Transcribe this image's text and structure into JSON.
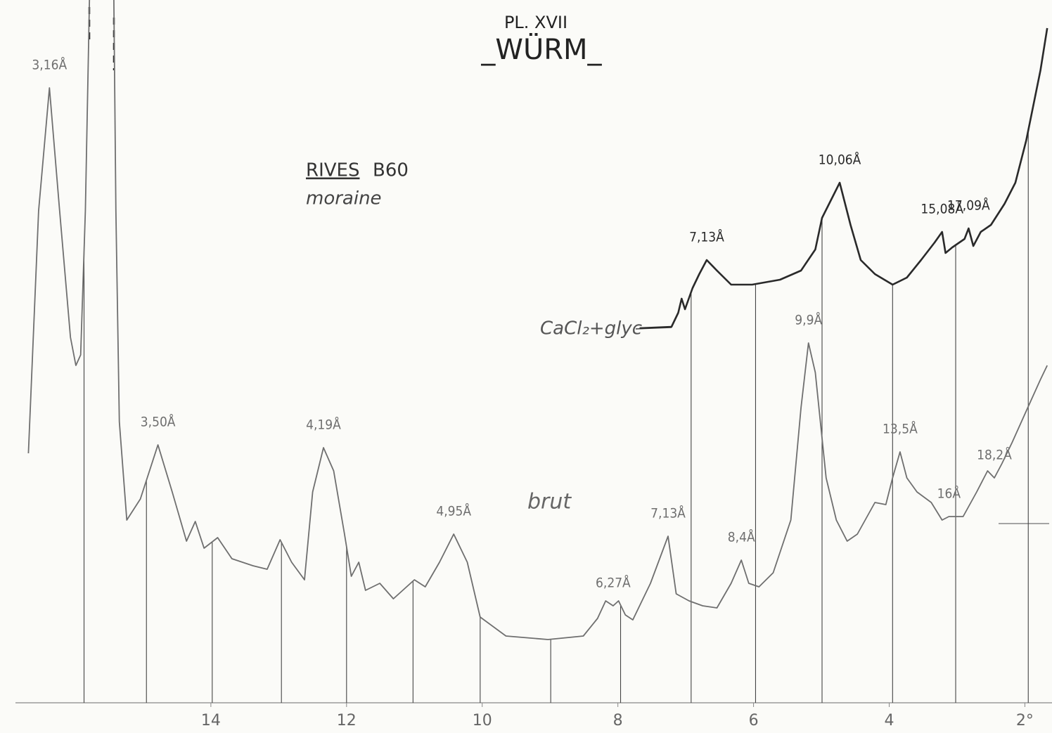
{
  "chart_data": {
    "type": "line",
    "title": "PL. XVII",
    "subtitle": "_WÜRM_",
    "sample_name": "RIVES",
    "sample_id": "B60",
    "material": "moraine",
    "xlim": [
      17,
      1.6
    ],
    "ylim": [
      0,
      100
    ],
    "xticks": [
      14,
      12,
      10,
      8,
      6,
      4,
      {
        "value": 2,
        "label": "2°"
      }
    ],
    "drop_lines": [
      15.87,
      14.95,
      13.98,
      12.96,
      12.0,
      11.02,
      10.03,
      8.99,
      7.96,
      6.92,
      5.97,
      4.99,
      3.95,
      3.02,
      1.95
    ],
    "series": [
      {
        "name": "brut",
        "color": "#6f6f6f",
        "x": [
          16.69,
          16.54,
          16.38,
          16.23,
          16.07,
          15.99,
          15.92,
          15.85,
          15.79,
          15.61,
          15.43,
          15.4,
          15.35,
          15.24,
          15.04,
          14.78,
          14.57,
          14.36,
          14.23,
          14.1,
          13.9,
          13.69,
          13.38,
          13.17,
          12.98,
          12.81,
          12.62,
          12.5,
          12.34,
          12.19,
          12.03,
          11.93,
          11.82,
          11.72,
          11.51,
          11.31,
          11.0,
          10.84,
          10.63,
          10.42,
          10.22,
          10.03,
          9.65,
          9.03,
          8.51,
          8.3,
          8.18,
          8.07,
          7.99,
          7.89,
          7.78,
          7.52,
          7.26,
          7.14,
          6.95,
          6.75,
          6.54,
          6.33,
          6.18,
          6.07,
          5.92,
          5.71,
          5.45,
          5.3,
          5.19,
          5.09,
          4.93,
          4.78,
          4.62,
          4.47,
          4.21,
          4.05,
          3.95,
          3.84,
          3.74,
          3.59,
          3.38,
          3.22,
          3.12,
          2.91,
          2.71,
          2.55,
          2.45,
          2.34,
          2.19,
          1.98,
          1.77,
          1.67
        ],
        "values": [
          35.5,
          70,
          87.5,
          70,
          52,
          48,
          49.5,
          70,
          100,
          null,
          100,
          70,
          40,
          26,
          29,
          36.7,
          30,
          23,
          25.8,
          22,
          23.5,
          20.5,
          19.5,
          19,
          23.2,
          20,
          17.5,
          30,
          36.3,
          33,
          24,
          18,
          20,
          16,
          17,
          14.8,
          17.5,
          16.5,
          20,
          24,
          20,
          12.2,
          9.5,
          9,
          9.5,
          12,
          14.5,
          13.8,
          14.5,
          12.5,
          11.8,
          17,
          23.7,
          15.5,
          14.5,
          13.8,
          13.5,
          17,
          20.3,
          17,
          16.5,
          18.5,
          26,
          42,
          51.2,
          47,
          32,
          26,
          23,
          24,
          28.5,
          28.2,
          32,
          35.7,
          32,
          30,
          28.5,
          26,
          26.5,
          26.5,
          30,
          33,
          32,
          34,
          37,
          41.5,
          46,
          48
        ],
        "peaks": [
          {
            "text": "3,16Å",
            "x": 16.38
          },
          {
            "text": "3,50Å",
            "x": 14.78
          },
          {
            "text": "4,19Å",
            "x": 12.34
          },
          {
            "text": "4,95Å",
            "x": 10.42
          },
          {
            "text": "6,27Å",
            "x": 8.07
          },
          {
            "text": "7,13Å",
            "x": 7.26
          },
          {
            "text": "8,4Å",
            "x": 6.18
          },
          {
            "text": "9,9Å",
            "x": 5.19
          },
          {
            "text": "13,5Å",
            "x": 3.84
          },
          {
            "text": "16Å",
            "x": 3.12
          },
          {
            "text": "18,2Å",
            "x": 2.45
          }
        ]
      },
      {
        "name": "CaCl₂+glyc",
        "color": "#2a2a2a",
        "x": [
          7.68,
          7.21,
          7.11,
          7.06,
          7.01,
          6.9,
          6.8,
          6.69,
          6.54,
          6.33,
          6.02,
          5.61,
          5.3,
          5.09,
          4.99,
          4.73,
          4.57,
          4.42,
          4.21,
          3.95,
          3.74,
          3.53,
          3.33,
          3.22,
          3.17,
          3.07,
          2.89,
          2.83,
          2.76,
          2.65,
          2.5,
          2.3,
          2.14,
          1.98,
          1.77,
          1.67
        ],
        "values": [
          53.3,
          53.5,
          55.5,
          57.5,
          56,
          59,
          61,
          63,
          61.5,
          59.5,
          59.5,
          60.2,
          61.5,
          64.5,
          69,
          74,
          68,
          63,
          61,
          59.5,
          60.5,
          63,
          65.5,
          67,
          64,
          64.8,
          66,
          67.5,
          65,
          67,
          68,
          71,
          74,
          80,
          90,
          96
        ],
        "peaks": [
          {
            "text": "7,13Å",
            "x": 6.69
          },
          {
            "text": "10,06Å",
            "x": 4.73
          },
          {
            "text": "15,08Å",
            "x": 3.22
          },
          {
            "text": "17,09Å",
            "x": 2.83
          }
        ]
      }
    ]
  }
}
